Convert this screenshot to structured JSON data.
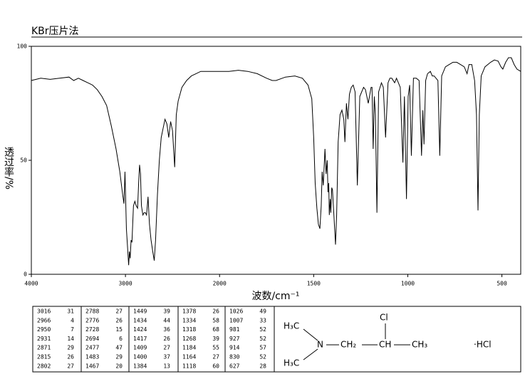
{
  "chart_data": {
    "type": "line",
    "title": "KBr压片法",
    "x_label": "波数/cm⁻¹",
    "y_label": "透过率/%",
    "color": "#000000",
    "xlim": [
      4000,
      400
    ],
    "xticks": [
      4000,
      3000,
      2000,
      1500,
      1000,
      500
    ],
    "ylim": [
      0,
      100
    ],
    "yticks": [
      0,
      50,
      100
    ],
    "x": [
      4000,
      3900,
      3800,
      3700,
      3600,
      3550,
      3500,
      3450,
      3400,
      3350,
      3300,
      3250,
      3200,
      3150,
      3100,
      3060,
      3030,
      3016,
      3005,
      2990,
      2966,
      2958,
      2950,
      2940,
      2931,
      2915,
      2900,
      2885,
      2871,
      2860,
      2850,
      2840,
      2830,
      2815,
      2802,
      2788,
      2776,
      2760,
      2745,
      2728,
      2710,
      2694,
      2680,
      2660,
      2640,
      2620,
      2600,
      2580,
      2560,
      2540,
      2520,
      2500,
      2477,
      2460,
      2440,
      2400,
      2350,
      2300,
      2250,
      2200,
      2150,
      2100,
      2050,
      2000,
      1950,
      1900,
      1850,
      1800,
      1750,
      1720,
      1700,
      1650,
      1600,
      1560,
      1530,
      1510,
      1500,
      1492,
      1483,
      1475,
      1467,
      1460,
      1455,
      1449,
      1440,
      1434,
      1428,
      1424,
      1420,
      1417,
      1412,
      1409,
      1404,
      1400,
      1392,
      1384,
      1378,
      1370,
      1360,
      1350,
      1340,
      1334,
      1326,
      1318,
      1310,
      1300,
      1290,
      1280,
      1268,
      1255,
      1245,
      1235,
      1225,
      1210,
      1195,
      1190,
      1184,
      1178,
      1172,
      1164,
      1155,
      1140,
      1130,
      1118,
      1105,
      1095,
      1085,
      1070,
      1060,
      1050,
      1040,
      1026,
      1018,
      1007,
      998,
      990,
      981,
      970,
      955,
      940,
      927,
      920,
      914,
      905,
      895,
      880,
      870,
      860,
      850,
      840,
      830,
      820,
      800,
      780,
      760,
      740,
      720,
      700,
      685,
      675,
      660,
      645,
      635,
      627,
      620,
      610,
      590,
      560,
      540,
      520,
      505,
      495,
      480,
      465,
      450,
      435,
      420,
      400
    ],
    "values": [
      85,
      86,
      85.5,
      86,
      86.5,
      85,
      86,
      85,
      84,
      83,
      81,
      78,
      74,
      65,
      55,
      45,
      35,
      31,
      45,
      20,
      4,
      10,
      7,
      15,
      14,
      30,
      32,
      30,
      29,
      40,
      48,
      44,
      30,
      26,
      27,
      27,
      26,
      34,
      22,
      15,
      10,
      6,
      15,
      35,
      50,
      60,
      64,
      68,
      66,
      60,
      67,
      63,
      47,
      70,
      76,
      82,
      85,
      87,
      88,
      89,
      89,
      89,
      89,
      89,
      89,
      89.5,
      89,
      88,
      86,
      85,
      85,
      86.5,
      87,
      86,
      83,
      77,
      60,
      40,
      29,
      22,
      20,
      30,
      45,
      39,
      55,
      44,
      50,
      36,
      40,
      26,
      33,
      27,
      38,
      37,
      25,
      13,
      26,
      58,
      70,
      72,
      68,
      58,
      75,
      68,
      79,
      82,
      83,
      80,
      39,
      78,
      80,
      82,
      81,
      75,
      82,
      82,
      55,
      78,
      70,
      27,
      80,
      84,
      82,
      60,
      84,
      86,
      86,
      84,
      86,
      84,
      82,
      49,
      78,
      33,
      78,
      83,
      52,
      86,
      86,
      85,
      52,
      72,
      57,
      85,
      88,
      89,
      87,
      87,
      86,
      85,
      52,
      87,
      91,
      92,
      93,
      93,
      92,
      91,
      88,
      92,
      92,
      85,
      70,
      28,
      70,
      87,
      91,
      93,
      94,
      93.5,
      91,
      90,
      93,
      95,
      95,
      92,
      90,
      89
    ]
  },
  "peak_table": {
    "rows": [
      [
        3016,
        31,
        2788,
        27,
        1449,
        39,
        1378,
        26,
        1026,
        49
      ],
      [
        2966,
        4,
        2776,
        26,
        1434,
        44,
        1334,
        58,
        1007,
        33
      ],
      [
        2950,
        7,
        2728,
        15,
        1424,
        36,
        1318,
        68,
        981,
        52
      ],
      [
        2931,
        14,
        2694,
        6,
        1417,
        26,
        1268,
        39,
        927,
        52
      ],
      [
        2871,
        29,
        2477,
        47,
        1409,
        27,
        1184,
        55,
        914,
        57
      ],
      [
        2815,
        26,
        1483,
        29,
        1400,
        37,
        1164,
        27,
        830,
        52
      ],
      [
        2802,
        27,
        1467,
        20,
        1384,
        13,
        1118,
        60,
        627,
        28
      ]
    ]
  },
  "structure": {
    "methyl_top": "H₃C",
    "methyl_bottom": "H₃C",
    "nitrogen": "N",
    "methylene": "CH₂",
    "methine": "CH",
    "chlorine": "Cl",
    "methyl_end": "CH₃",
    "salt": "·HCl"
  }
}
